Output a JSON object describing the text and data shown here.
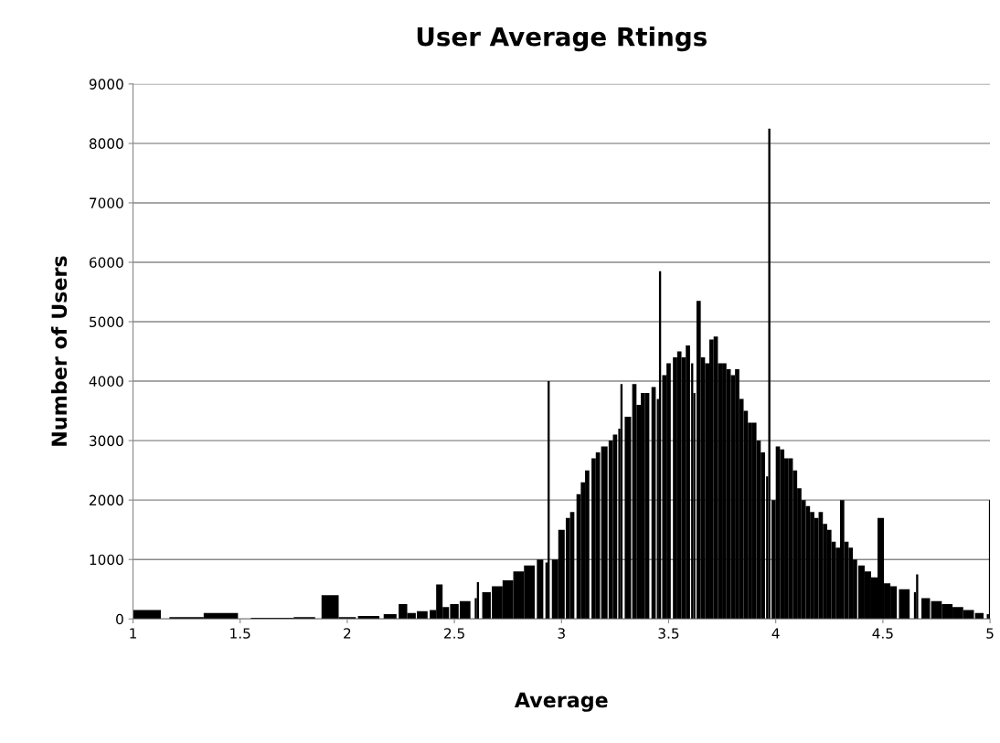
{
  "chart_data": {
    "type": "bar",
    "title": "User Average Rtings",
    "xlabel": "Average",
    "ylabel": "Number of Users",
    "x": [
      1.01,
      1.25,
      1.41,
      1.6,
      1.7,
      1.8,
      1.92,
      2.0,
      2.1,
      2.2,
      2.26,
      2.3,
      2.35,
      2.4,
      2.43,
      2.46,
      2.5,
      2.55,
      2.6,
      2.61,
      2.65,
      2.7,
      2.75,
      2.8,
      2.85,
      2.9,
      2.93,
      2.94,
      2.97,
      3.0,
      3.03,
      3.05,
      3.08,
      3.1,
      3.12,
      3.15,
      3.17,
      3.2,
      3.23,
      3.25,
      3.27,
      3.28,
      3.31,
      3.34,
      3.36,
      3.38,
      3.4,
      3.43,
      3.45,
      3.46,
      3.48,
      3.5,
      3.53,
      3.55,
      3.57,
      3.59,
      3.61,
      3.62,
      3.64,
      3.66,
      3.68,
      3.7,
      3.72,
      3.74,
      3.76,
      3.78,
      3.8,
      3.82,
      3.84,
      3.86,
      3.88,
      3.9,
      3.92,
      3.94,
      3.96,
      3.97,
      3.99,
      4.01,
      4.03,
      4.05,
      4.07,
      4.09,
      4.11,
      4.13,
      4.15,
      4.17,
      4.19,
      4.21,
      4.23,
      4.25,
      4.27,
      4.29,
      4.31,
      4.33,
      4.35,
      4.37,
      4.4,
      4.43,
      4.46,
      4.49,
      4.52,
      4.55,
      4.6,
      4.65,
      4.66,
      4.7,
      4.75,
      4.8,
      4.85,
      4.9,
      4.95,
      4.99,
      5.0
    ],
    "values": [
      150,
      30,
      100,
      20,
      20,
      30,
      400,
      30,
      50,
      80,
      250,
      100,
      130,
      150,
      580,
      200,
      250,
      300,
      350,
      620,
      450,
      550,
      650,
      800,
      900,
      1000,
      950,
      4000,
      1000,
      1500,
      1700,
      1800,
      2100,
      2300,
      2500,
      2700,
      2800,
      2900,
      3000,
      3100,
      3200,
      3950,
      3400,
      3950,
      3600,
      3800,
      3800,
      3900,
      3700,
      5850,
      4100,
      4300,
      4400,
      4500,
      4400,
      4600,
      4300,
      3800,
      5350,
      4400,
      4300,
      4700,
      4750,
      4300,
      4300,
      4200,
      4100,
      4200,
      3700,
      3500,
      3300,
      3300,
      3000,
      2800,
      2400,
      8250,
      2000,
      2900,
      2850,
      2700,
      2700,
      2500,
      2200,
      2000,
      1900,
      1800,
      1700,
      1800,
      1600,
      1500,
      1300,
      1200,
      2000,
      1300,
      1200,
      1000,
      900,
      800,
      700,
      1700,
      600,
      550,
      500,
      450,
      750,
      350,
      300,
      250,
      200,
      150,
      100,
      80,
      2000
    ],
    "color": "#000000",
    "xlim": [
      1,
      5
    ],
    "xticks": [
      1,
      1.5,
      2,
      2.5,
      3,
      3.5,
      4,
      4.5,
      5
    ],
    "ylim": [
      0,
      9000
    ],
    "yticks": [
      0,
      1000,
      2000,
      3000,
      4000,
      5000,
      6000,
      7000,
      8000,
      9000
    ],
    "grid": "y"
  }
}
